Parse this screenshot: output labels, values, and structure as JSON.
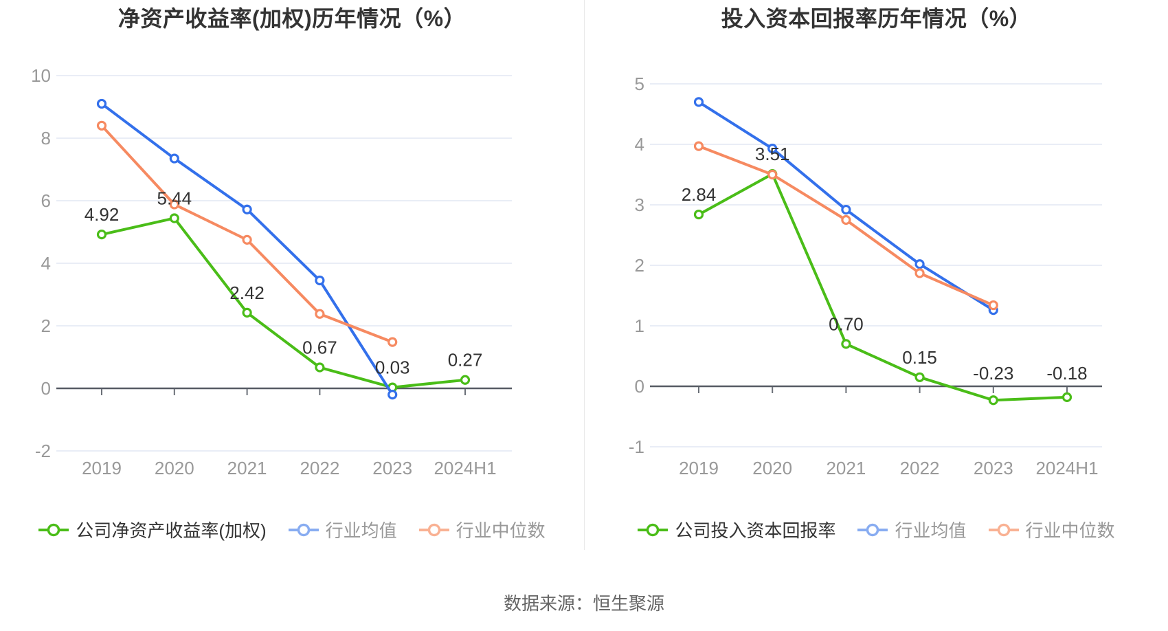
{
  "footer": {
    "text": "数据来源：恒生聚源"
  },
  "chart_data": [
    {
      "type": "line",
      "title": "净资产收益率(加权)历年情况（%）",
      "categories": [
        "2019",
        "2020",
        "2021",
        "2022",
        "2023",
        "2024H1"
      ],
      "ylim": [
        -2,
        10
      ],
      "y_ticks": [
        10,
        8,
        6,
        4,
        2,
        0,
        -2
      ],
      "grid": true,
      "legend_position": "bottom",
      "series": [
        {
          "id": "company",
          "name": "公司净资产收益率(加权)",
          "color": "#4ABD18",
          "legend_color": "#4ABD18",
          "values": [
            4.92,
            5.44,
            2.42,
            0.67,
            0.03,
            0.27
          ],
          "data_labels": [
            "4.92",
            "5.44",
            "2.42",
            "0.67",
            "0.03",
            "0.27"
          ]
        },
        {
          "id": "industry-mean",
          "name": "行业均值",
          "color": "#3370EB",
          "legend_color": "#88ACF1",
          "values": [
            9.1,
            7.35,
            5.72,
            3.45,
            -0.2,
            null
          ],
          "data_labels": null
        },
        {
          "id": "industry-median",
          "name": "行业中位数",
          "color": "#F68A61",
          "legend_color": "#F9B193",
          "values": [
            8.4,
            5.88,
            4.75,
            2.38,
            1.48,
            null
          ],
          "data_labels": null
        }
      ]
    },
    {
      "type": "line",
      "title": "投入资本回报率历年情况（%）",
      "categories": [
        "2019",
        "2020",
        "2021",
        "2022",
        "2023",
        "2024H1"
      ],
      "ylim": [
        -1,
        5
      ],
      "y_ticks": [
        5,
        4,
        3,
        2,
        1,
        0,
        -1
      ],
      "grid": true,
      "legend_position": "bottom",
      "series": [
        {
          "id": "company",
          "name": "公司投入资本回报率",
          "color": "#4ABD18",
          "legend_color": "#4ABD18",
          "values": [
            2.84,
            3.51,
            0.7,
            0.15,
            -0.23,
            -0.18
          ],
          "data_labels": [
            "2.84",
            "3.51",
            "0.70",
            "0.15",
            "-0.23",
            "-0.18"
          ]
        },
        {
          "id": "industry-mean",
          "name": "行业均值",
          "color": "#3370EB",
          "legend_color": "#88ACF1",
          "values": [
            4.7,
            3.93,
            2.92,
            2.02,
            1.26,
            null
          ],
          "data_labels": null
        },
        {
          "id": "industry-median",
          "name": "行业中位数",
          "color": "#F68A61",
          "legend_color": "#F9B193",
          "values": [
            3.97,
            3.5,
            2.75,
            1.87,
            1.34,
            null
          ],
          "data_labels": null
        }
      ]
    }
  ]
}
